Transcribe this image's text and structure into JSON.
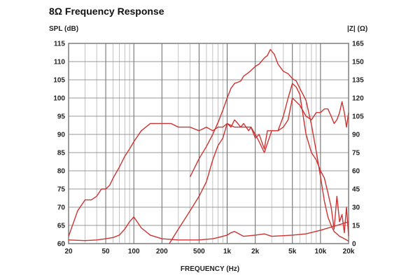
{
  "chart_data": {
    "type": "line",
    "title": "8Ω Frequency Response",
    "ylabel_left": "SPL (dB)",
    "ylabel_right": "|Z| (Ω)",
    "xlabel": "FREQUENCY (Hz)",
    "x_scale": "log",
    "xlim": [
      20,
      20000
    ],
    "ylim_left": [
      60,
      115
    ],
    "ylim_right": [
      0,
      165
    ],
    "x_ticks": [
      20,
      50,
      100,
      200,
      500,
      1000,
      2000,
      5000,
      10000,
      20000
    ],
    "x_tick_labels": [
      "20",
      "50",
      "100",
      "200",
      "500",
      "1k",
      "2k",
      "5k",
      "10k",
      "20k"
    ],
    "y_left_ticks": [
      60,
      65,
      70,
      75,
      80,
      85,
      90,
      95,
      100,
      105,
      110,
      115
    ],
    "y_right_ticks": [
      0,
      15,
      30,
      45,
      60,
      75,
      90,
      105,
      120,
      135,
      150,
      165
    ],
    "grid": true,
    "line_color": "#cc3333",
    "series": [
      {
        "axis": "left",
        "x": [
          20,
          25,
          30,
          35,
          40,
          45,
          50,
          55,
          60,
          70,
          80,
          90,
          100,
          120,
          150,
          180,
          200,
          250,
          300,
          350,
          400,
          500,
          600,
          700,
          800,
          900,
          1000,
          1200,
          1500,
          1800,
          2000,
          2200,
          2500,
          3000,
          3500,
          4000,
          4500,
          5000,
          5500,
          6000,
          7000,
          8000,
          9000,
          10000,
          11000,
          12000,
          13000,
          14000,
          15000,
          16000,
          17000,
          18000,
          19000,
          20000
        ],
        "y": [
          62,
          69,
          72,
          72,
          73,
          75,
          75,
          76,
          78,
          81,
          84,
          86,
          88,
          91,
          93,
          93,
          93,
          93,
          92,
          92,
          92,
          91,
          92,
          91,
          92,
          92,
          93,
          92,
          92,
          92,
          90,
          88,
          85,
          91,
          91,
          95,
          100,
          104,
          103,
          101,
          90,
          85,
          83,
          80,
          78,
          74,
          70,
          64,
          73,
          66,
          68,
          63,
          70,
          62
        ]
      },
      {
        "axis": "right",
        "x": [
          20,
          30,
          40,
          50,
          60,
          70,
          80,
          90,
          100,
          120,
          150,
          200,
          300,
          400,
          500,
          700,
          800,
          1000,
          1100,
          1200,
          1500,
          2000,
          2500,
          3000,
          4000,
          5000,
          7000,
          10000,
          15000,
          20000
        ],
        "y": [
          3,
          2.5,
          3,
          4,
          5,
          7,
          12,
          18,
          22,
          13,
          7,
          4,
          3,
          3,
          3,
          4,
          5,
          7,
          9,
          10,
          6,
          7,
          8,
          6,
          6.5,
          7,
          8,
          11,
          15,
          18
        ]
      },
      {
        "axis": "left",
        "x": [
          240,
          300,
          400,
          500,
          600,
          700,
          800,
          900,
          1000,
          1100,
          1200,
          1300,
          1400,
          1500,
          1700,
          1800,
          2000,
          2200,
          2500,
          2700,
          3000,
          3500,
          4000,
          4500,
          5000,
          6000,
          7000,
          8000,
          9000,
          10000,
          11000,
          12000,
          13000,
          14000,
          15000,
          16000,
          17000,
          18000,
          19000,
          20000
        ],
        "y": [
          60,
          64,
          69,
          73,
          77,
          83,
          87,
          89,
          93,
          92,
          94,
          93,
          92,
          93,
          91,
          92,
          89,
          90,
          86,
          91,
          91,
          91,
          92,
          94,
          100,
          98,
          95,
          94,
          96,
          96,
          97,
          97,
          95,
          93,
          94,
          96,
          99,
          96,
          92,
          96
        ]
      },
      {
        "axis": "right",
        "x": [
          400,
          500,
          600,
          700,
          800,
          900,
          1000,
          1100,
          1200,
          1300,
          1400,
          1500,
          1700,
          2000,
          2200,
          2500,
          2700,
          2900,
          3200,
          3500,
          4000,
          4500,
          5000,
          5500,
          6000,
          7000,
          8000,
          9000,
          10000,
          11000,
          12000,
          13000,
          14000,
          15000,
          16000,
          17000,
          18000,
          19000,
          20000
        ],
        "y": [
          55,
          70,
          80,
          90,
          100,
          110,
          120,
          128,
          132,
          133,
          134,
          138,
          141,
          146,
          148,
          153,
          155,
          160,
          156,
          148,
          142,
          140,
          136,
          134,
          128,
          118,
          98,
          76,
          55,
          35,
          22,
          15,
          10,
          8,
          6,
          5,
          4,
          3,
          2
        ]
      }
    ]
  }
}
